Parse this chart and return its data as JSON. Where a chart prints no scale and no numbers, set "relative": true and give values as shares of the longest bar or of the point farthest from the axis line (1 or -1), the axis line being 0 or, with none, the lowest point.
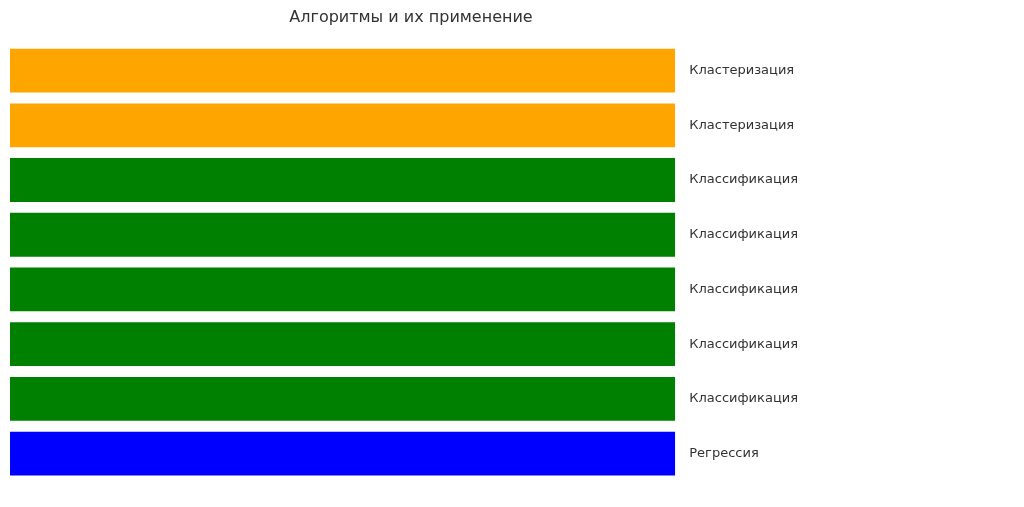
{
  "chart_data": {
    "type": "bar",
    "orientation": "horizontal",
    "relative": true,
    "title": "Алгоритмы и их применение",
    "categories": [
      "Кластеризация",
      "Кластеризация",
      "Классификация",
      "Классификация",
      "Классификация",
      "Классификация",
      "Классификация",
      "Регрессия"
    ],
    "values": [
      1,
      1,
      1,
      1,
      1,
      1,
      1,
      1
    ],
    "colors": [
      "#ffa500",
      "#ffa500",
      "#008000",
      "#008000",
      "#008000",
      "#008000",
      "#008000",
      "#0000ff"
    ]
  }
}
